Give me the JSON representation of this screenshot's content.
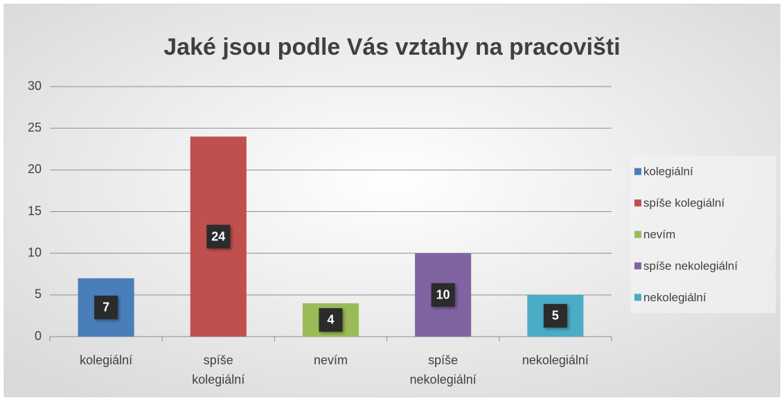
{
  "chart_data": {
    "type": "bar",
    "title": "Jaké jsou podle Vás vztahy na pracovišti",
    "categories": [
      "kolegiální",
      "spíše kolegiální",
      "nevím",
      "spíše nekolegiální",
      "nekolegiální"
    ],
    "values": [
      7,
      24,
      4,
      10,
      5
    ],
    "colors": [
      "#4a7ebb",
      "#c0504d",
      "#9bbb59",
      "#8064a2",
      "#4bacc6"
    ],
    "ylim": [
      0,
      30
    ],
    "yticks": [
      0,
      5,
      10,
      15,
      20,
      25,
      30
    ],
    "grid": true,
    "legend": "right"
  }
}
